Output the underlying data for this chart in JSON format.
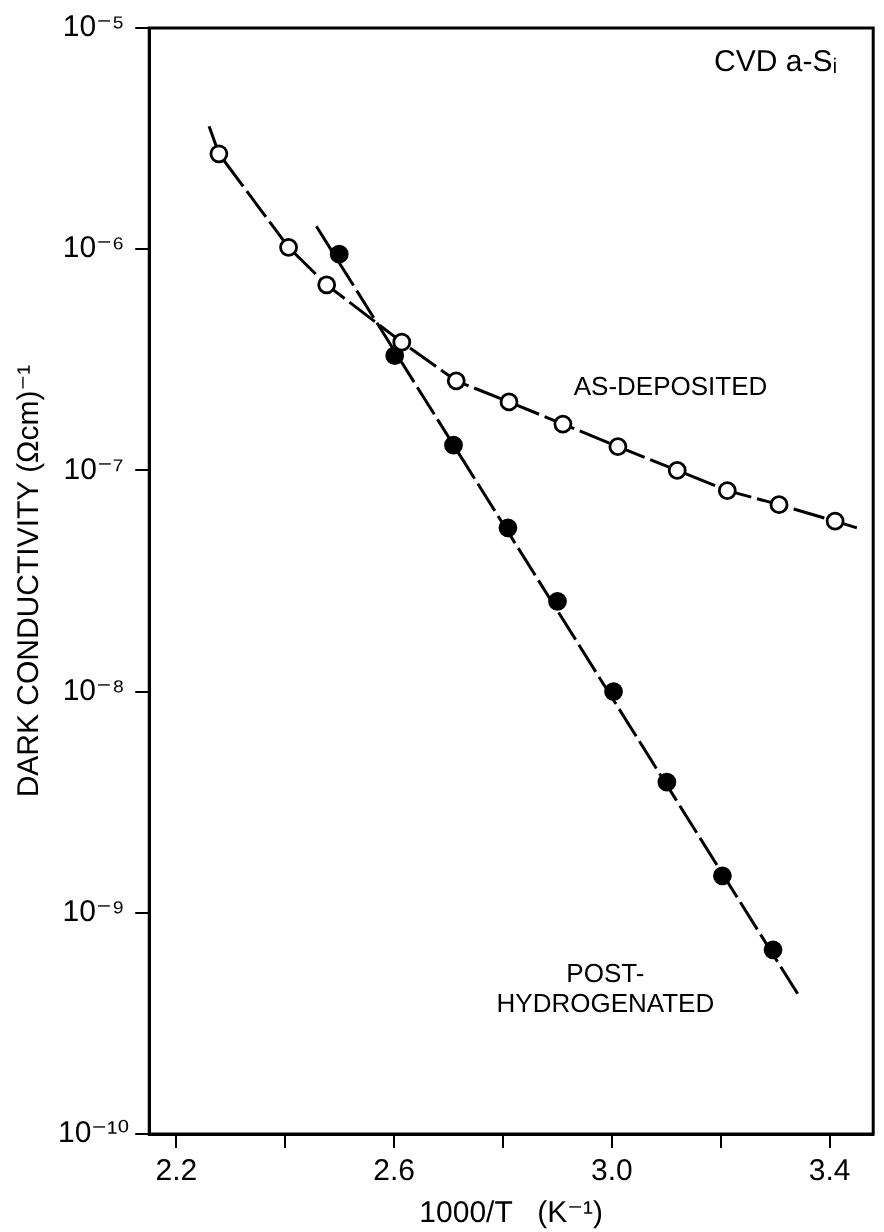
{
  "chart_data": {
    "type": "scatter",
    "title": "CVD a-Sᵢ",
    "xlabel": "1000/T   (K⁻¹)",
    "ylabel": "DARK CONDUCTIVITY (Ωcm)⁻¹",
    "log": "y",
    "xlim": [
      2.15,
      3.48
    ],
    "ylim": [
      1e-10,
      1e-05
    ],
    "xticks": [
      2.2,
      {
        "value": 2.4,
        "label": null
      },
      2.6,
      {
        "value": 2.8,
        "label": null
      },
      {
        "value": 3,
        "label": "3.0"
      },
      {
        "value": 3.2,
        "label": null
      },
      3.4
    ],
    "yticks": [
      {
        "value": 1e-10,
        "label": "10⁻¹⁰"
      },
      {
        "value": 1e-09,
        "label": "10⁻⁹"
      },
      {
        "value": 1e-08,
        "label": "10⁻⁸"
      },
      {
        "value": 1e-07,
        "label": "10⁻⁷"
      },
      {
        "value": 1e-06,
        "label": "10⁻⁶"
      },
      {
        "value": 1e-05,
        "label": "10⁻⁵"
      }
    ],
    "grid": false,
    "legend": false,
    "marker": "circle",
    "series": [
      {
        "type": "line",
        "color": "#000000",
        "marker": "none",
        "line_style": "dashed",
        "x": [
          2.26,
          2.278,
          2.406,
          2.476,
          2.614,
          2.714,
          2.811,
          2.91,
          3.011,
          3.12,
          3.212,
          3.307,
          3.41,
          3.45
        ],
        "values": [
          3.6e-06,
          2.7e-06,
          1.02e-06,
          6.9e-07,
          3.8e-07,
          2.54e-07,
          2.04e-07,
          1.62e-07,
          1.28e-07,
          1e-07,
          8.1e-08,
          7e-08,
          5.9e-08,
          5.5e-08
        ]
      },
      {
        "type": "line",
        "color": "#000000",
        "marker": "none",
        "line_style": "dashed",
        "x": [
          2.457,
          3.344
        ],
        "values": [
          1.27e-06,
          4.2e-10
        ]
      },
      {
        "color": "#ffffff",
        "x": [
          2.278,
          2.406,
          2.476,
          2.614,
          2.714,
          2.811,
          2.91,
          3.011,
          3.12,
          3.212,
          3.307,
          3.41
        ],
        "values": [
          2.7e-06,
          1.02e-06,
          6.9e-07,
          3.8e-07,
          2.54e-07,
          2.04e-07,
          1.62e-07,
          1.28e-07,
          1e-07,
          8.1e-08,
          7e-08,
          5.9e-08
        ]
      },
      {
        "color": "#000000",
        "x": [
          2.499,
          2.601,
          2.709,
          2.809,
          2.9,
          3.003,
          3.101,
          3.203,
          3.296
        ],
        "values": [
          9.5e-07,
          3.3e-07,
          1.3e-07,
          5.5e-08,
          2.56e-08,
          1e-08,
          3.9e-09,
          1.47e-09,
          6.8e-10
        ]
      }
    ],
    "annotations": [
      "AS-DEPOSITED",
      "POST-\nHYDROGENATED"
    ]
  }
}
